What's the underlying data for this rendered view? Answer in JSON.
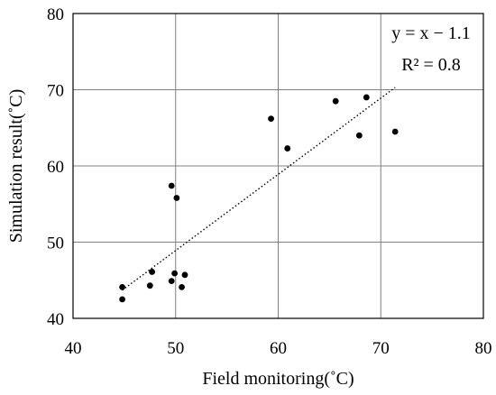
{
  "chart_data": {
    "type": "scatter",
    "title": "",
    "xlabel": "Field monitoring(˚C)",
    "ylabel": "Simulation result(˚C)",
    "xlim": [
      40,
      80
    ],
    "ylim": [
      40,
      80
    ],
    "xticks": [
      40,
      50,
      60,
      70,
      80
    ],
    "yticks": [
      40,
      50,
      60,
      70,
      80
    ],
    "grid": true,
    "legend": "none",
    "series": [
      {
        "points": [
          {
            "x": 44.8,
            "y": 44.1
          },
          {
            "x": 44.8,
            "y": 42.5
          },
          {
            "x": 47.5,
            "y": 44.3
          },
          {
            "x": 47.7,
            "y": 46.1
          },
          {
            "x": 49.6,
            "y": 44.9
          },
          {
            "x": 49.9,
            "y": 45.9
          },
          {
            "x": 50.6,
            "y": 44.1
          },
          {
            "x": 50.9,
            "y": 45.7
          },
          {
            "x": 49.6,
            "y": 57.4
          },
          {
            "x": 50.1,
            "y": 55.8
          },
          {
            "x": 59.3,
            "y": 66.2
          },
          {
            "x": 60.9,
            "y": 62.3
          },
          {
            "x": 65.6,
            "y": 68.5
          },
          {
            "x": 67.9,
            "y": 64.0
          },
          {
            "x": 68.6,
            "y": 69.0
          },
          {
            "x": 71.4,
            "y": 64.5
          }
        ],
        "color": "#000000"
      }
    ],
    "trendline": {
      "style": "dotted",
      "slope": 1,
      "intercept": -1.1,
      "x_range": [
        44.8,
        71.4
      ],
      "equation": "y = x − 1.1",
      "r2": "R² = 0.8"
    }
  }
}
